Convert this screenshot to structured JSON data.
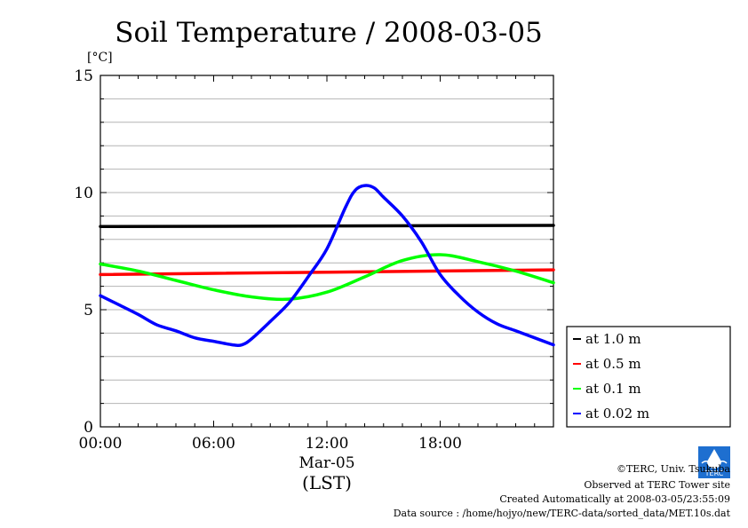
{
  "chart_data": {
    "type": "line",
    "title": "Soil Temperature / 2008-03-05",
    "y_unit": "[°C]",
    "ylim": [
      0,
      15
    ],
    "y_ticks": [
      0,
      5,
      10,
      15
    ],
    "y_tick_labels": [
      "0",
      "5",
      "10",
      "15"
    ],
    "x_range_hours": [
      0,
      24
    ],
    "x_ticks_hours": [
      0,
      6,
      12,
      18
    ],
    "x_tick_labels": [
      "00:00",
      "06:00",
      "12:00",
      "18:00"
    ],
    "x_date_label": "Mar-05",
    "xlabel": "(LST)",
    "grid": "horizontal",
    "legend_position": "right-bottom",
    "series": [
      {
        "name": "at 1.0 m",
        "color": "#000000",
        "x": [
          0,
          24
        ],
        "values": [
          8.55,
          8.6
        ]
      },
      {
        "name": "at 0.5 m",
        "color": "#ff0000",
        "x": [
          0,
          24
        ],
        "values": [
          6.5,
          6.7
        ]
      },
      {
        "name": "at 0.1 m",
        "color": "#00ff00",
        "x": [
          0,
          2,
          4,
          6,
          8,
          10,
          12,
          14,
          16,
          18,
          20,
          22,
          24
        ],
        "values": [
          6.95,
          6.65,
          6.25,
          5.85,
          5.55,
          5.45,
          5.75,
          6.4,
          7.1,
          7.35,
          7.05,
          6.65,
          6.15
        ]
      },
      {
        "name": "at 0.02 m",
        "color": "#0000ff",
        "x": [
          0,
          1,
          2,
          3,
          4,
          5,
          6,
          7,
          7.5,
          8,
          9,
          10,
          11,
          12,
          13,
          13.5,
          14,
          14.5,
          15,
          16,
          17,
          18,
          19,
          20,
          21,
          22,
          23,
          24
        ],
        "values": [
          5.6,
          5.2,
          4.8,
          4.35,
          4.1,
          3.8,
          3.65,
          3.5,
          3.5,
          3.75,
          4.5,
          5.3,
          6.4,
          7.6,
          9.4,
          10.1,
          10.3,
          10.2,
          9.8,
          9.0,
          7.9,
          6.5,
          5.6,
          4.9,
          4.4,
          4.1,
          3.8,
          3.5
        ]
      }
    ]
  },
  "footer": {
    "line1": "©TERC, Univ. Tsukuba",
    "line2": "Observed at TERC Tower site",
    "line3": "Created Automatically at 2008-03-05/23:55:09",
    "line4": "Data source : /home/hojyo/new/TERC-data/sorted_data/MET.10s.dat",
    "logo_text": "TERC"
  }
}
